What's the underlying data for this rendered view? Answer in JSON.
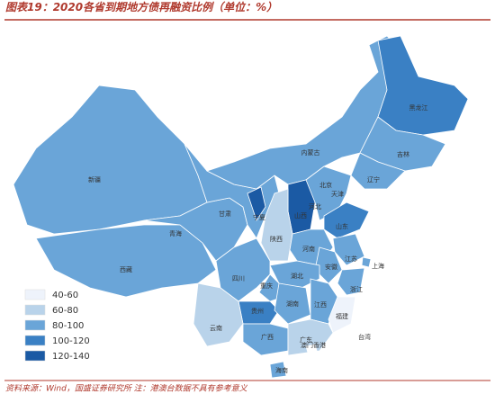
{
  "header": {
    "title": "图表19：2020各省到期地方债再融资比例（单位：%）"
  },
  "legend": [
    {
      "label": "40-60",
      "color": "#eef3fb"
    },
    {
      "label": "60-80",
      "color": "#b9d3ea"
    },
    {
      "label": "80-100",
      "color": "#6aa5d8"
    },
    {
      "label": "100-120",
      "color": "#3a80c4"
    },
    {
      "label": "120-140",
      "color": "#1b5aa4"
    }
  ],
  "provinces": [
    {
      "name": "新疆",
      "color": "#6aa5d8"
    },
    {
      "name": "西藏",
      "color": "#6aa5d8"
    },
    {
      "name": "青海",
      "color": "#6aa5d8"
    },
    {
      "name": "甘肃",
      "color": "#6aa5d8"
    },
    {
      "name": "宁夏",
      "color": "#1b5aa4"
    },
    {
      "name": "内蒙古",
      "color": "#6aa5d8"
    },
    {
      "name": "黑龙江",
      "color": "#3a80c4"
    },
    {
      "name": "吉林",
      "color": "#6aa5d8"
    },
    {
      "name": "辽宁",
      "color": "#6aa5d8"
    },
    {
      "name": "北京",
      "color": "#eef3fb"
    },
    {
      "name": "天津",
      "color": "#3a80c4"
    },
    {
      "name": "河北",
      "color": "#6aa5d8"
    },
    {
      "name": "山西",
      "color": "#1b5aa4"
    },
    {
      "name": "山东",
      "color": "#3a80c4"
    },
    {
      "name": "陕西",
      "color": "#b9d3ea"
    },
    {
      "name": "河南",
      "color": "#6aa5d8"
    },
    {
      "name": "江苏",
      "color": "#6aa5d8"
    },
    {
      "name": "安徽",
      "color": "#6aa5d8"
    },
    {
      "name": "上海",
      "color": "#6aa5d8"
    },
    {
      "name": "浙江",
      "color": "#6aa5d8"
    },
    {
      "name": "湖北",
      "color": "#6aa5d8"
    },
    {
      "name": "四川",
      "color": "#6aa5d8"
    },
    {
      "name": "重庆",
      "color": "#6aa5d8"
    },
    {
      "name": "贵州",
      "color": "#3a80c4"
    },
    {
      "name": "湖南",
      "color": "#6aa5d8"
    },
    {
      "name": "江西",
      "color": "#6aa5d8"
    },
    {
      "name": "福建",
      "color": "#eef3fb"
    },
    {
      "name": "台湾",
      "color": "#ffffff"
    },
    {
      "name": "云南",
      "color": "#b9d3ea"
    },
    {
      "name": "广西",
      "color": "#6aa5d8"
    },
    {
      "name": "广东",
      "color": "#b9d3ea"
    },
    {
      "name": "海南",
      "color": "#6aa5d8"
    },
    {
      "name": "澳门香港",
      "color": "#ffffff"
    }
  ],
  "footer": {
    "source": "资料来源：Wind，国盛证券研究所   注：港澳台数据不具有参考意义"
  }
}
